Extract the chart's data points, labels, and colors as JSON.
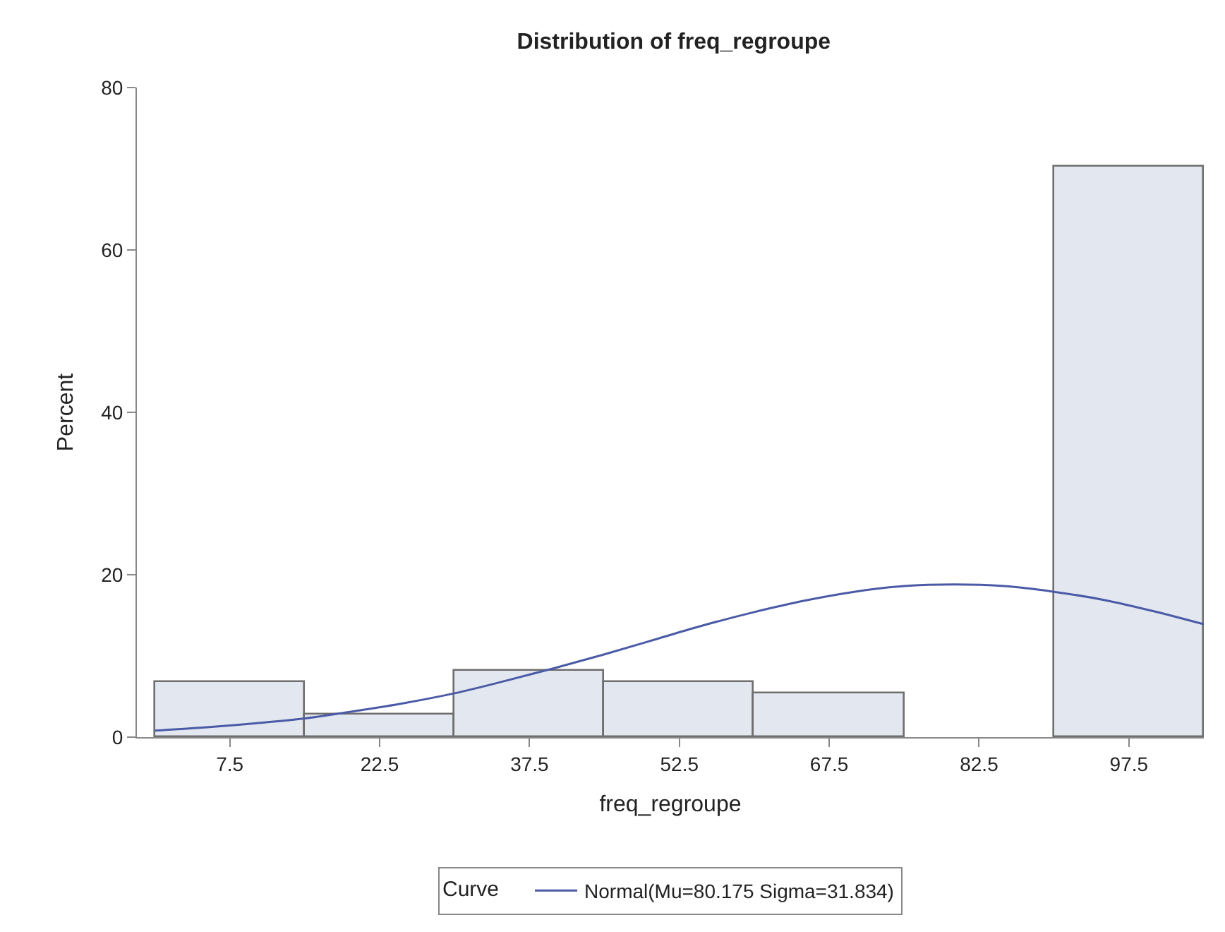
{
  "chart_data": {
    "type": "histogram",
    "title": "Distribution of freq_regroupe",
    "xlabel": "freq_regroupe",
    "ylabel": "Percent",
    "bins": [
      0,
      15,
      30,
      45,
      60,
      75,
      90,
      105
    ],
    "values": [
      6.8,
      2.7,
      8.1,
      6.8,
      5.4,
      0,
      70.3
    ],
    "color": "#e3e7f0",
    "xlim": [
      -1.8,
      105
    ],
    "xticks": [
      7.5,
      22.5,
      37.5,
      52.5,
      67.5,
      82.5,
      97.5
    ],
    "ylim": [
      0,
      80
    ],
    "yticks": [
      0,
      20,
      40,
      60,
      80
    ],
    "legend": "bottom",
    "legend_title": "Curve",
    "series": [
      {
        "name": "Normal(Mu=80.175 Sigma=31.834)",
        "type": "line",
        "color": "#4a5aa6",
        "x": [
          0,
          5,
          10,
          15,
          20,
          25,
          30,
          35,
          40,
          45,
          50,
          55,
          60,
          65,
          70,
          75,
          80,
          85,
          90,
          95,
          100,
          105
        ],
        "values": [
          0.8,
          1.2,
          1.7,
          2.3,
          3.2,
          4.2,
          5.4,
          6.9,
          8.5,
          10.2,
          12.0,
          13.8,
          15.4,
          16.8,
          17.9,
          18.6,
          18.8,
          18.6,
          17.9,
          16.9,
          15.5,
          13.9
        ]
      }
    ]
  }
}
